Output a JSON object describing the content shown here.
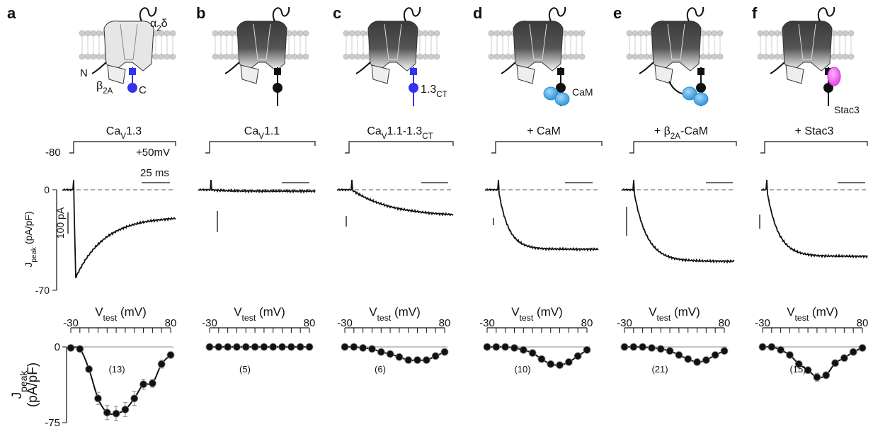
{
  "chart_data": [
    {
      "type": "line",
      "letter": "a",
      "title": [
        "Ca",
        "V",
        "1.3"
      ],
      "n_label": "(13)",
      "x_label": [
        "V",
        "test",
        " (mV)"
      ],
      "y_label": [
        "J",
        "peak",
        "(pA/pF)"
      ],
      "x": [
        -30,
        -20,
        -10,
        0,
        10,
        20,
        30,
        40,
        50,
        60,
        70,
        80
      ],
      "values": [
        -1,
        -2,
        -22,
        -51,
        -65,
        -66,
        -62,
        -51,
        -37,
        -36,
        -17,
        -8
      ],
      "errors": [
        0.5,
        1,
        3,
        6,
        7,
        7,
        7,
        7,
        5,
        4,
        4,
        3
      ],
      "xlim": [
        -30,
        80
      ],
      "xticks": [
        -30,
        80
      ],
      "ylim": [
        -75,
        0
      ],
      "yticks": [
        0,
        -75
      ]
    },
    {
      "type": "line",
      "letter": "b",
      "title": [
        "Ca",
        "V",
        "1.1"
      ],
      "n_label": "(5)",
      "x_label": [
        "V",
        "test",
        " (mV)"
      ],
      "x": [
        -30,
        -20,
        -10,
        0,
        10,
        20,
        30,
        40,
        50,
        60,
        70,
        80
      ],
      "values": [
        0,
        0,
        0,
        0,
        0,
        0,
        0,
        0,
        0,
        0,
        0,
        0
      ],
      "errors": [
        0.5,
        0.5,
        0.5,
        0.5,
        0.5,
        0.5,
        0.5,
        0.5,
        0.5,
        0.5,
        0.5,
        0.5
      ],
      "xlim": [
        -30,
        80
      ],
      "xticks": [
        -30,
        80
      ],
      "ylim": [
        -75,
        0
      ]
    },
    {
      "type": "line",
      "letter": "c",
      "title": [
        "Ca",
        "V",
        "1.1-1.3",
        "CT"
      ],
      "n_label": "(6)",
      "x_label": [
        "V",
        "test",
        " (mV)"
      ],
      "x": [
        -30,
        -20,
        -10,
        0,
        10,
        20,
        30,
        40,
        50,
        60,
        70,
        80
      ],
      "values": [
        0,
        0,
        -1,
        -2,
        -5,
        -7,
        -10,
        -13,
        -13,
        -13,
        -9,
        -5
      ],
      "errors": [
        0.5,
        0.5,
        0.5,
        1,
        1,
        1,
        1.5,
        1.5,
        1.5,
        1.5,
        1,
        1
      ],
      "xlim": [
        -30,
        80
      ],
      "xticks": [
        -30,
        80
      ],
      "ylim": [
        -75,
        0
      ]
    },
    {
      "type": "line",
      "letter": "d",
      "title": [
        "+ CaM"
      ],
      "n_label": "(10)",
      "x_label": [
        "V",
        "test",
        " (mV)"
      ],
      "x": [
        -30,
        -20,
        -10,
        0,
        10,
        20,
        30,
        40,
        50,
        60,
        70,
        80
      ],
      "values": [
        0,
        0,
        0,
        -1,
        -3,
        -6,
        -12,
        -17,
        -18,
        -15,
        -9,
        -3
      ],
      "errors": [
        0.5,
        0.5,
        0.5,
        0.5,
        1,
        1,
        2,
        2,
        2,
        2,
        1.5,
        1
      ],
      "xlim": [
        -30,
        80
      ],
      "xticks": [
        -30,
        80
      ],
      "ylim": [
        -75,
        0
      ]
    },
    {
      "type": "line",
      "letter": "e",
      "title": [
        "+ β",
        "2A",
        "-CaM"
      ],
      "n_label": "(21)",
      "x_label": [
        "V",
        "test",
        " (mV)"
      ],
      "x": [
        -30,
        -20,
        -10,
        0,
        10,
        20,
        30,
        40,
        50,
        60,
        70,
        80
      ],
      "values": [
        0,
        0,
        0,
        -1,
        -2,
        -4,
        -8,
        -12,
        -15,
        -13,
        -8,
        -4
      ],
      "errors": [
        0.5,
        0.5,
        0.5,
        0.5,
        1,
        1,
        1,
        1.5,
        1.5,
        1.5,
        1,
        1
      ],
      "xlim": [
        -30,
        80
      ],
      "xticks": [
        -30,
        80
      ],
      "ylim": [
        -75,
        0
      ]
    },
    {
      "type": "line",
      "letter": "f",
      "title": [
        "+ Stac3"
      ],
      "n_label": "(15)",
      "x_label": [
        "V",
        "test",
        " (mV)"
      ],
      "x": [
        -30,
        -20,
        -10,
        0,
        10,
        20,
        30,
        40,
        50,
        60,
        70,
        80
      ],
      "values": [
        0,
        0,
        -3,
        -8,
        -17,
        -23,
        -30,
        -28,
        -16,
        -11,
        -5,
        -1
      ],
      "errors": [
        0.5,
        0.5,
        1,
        2,
        3,
        3,
        4,
        3,
        3,
        2,
        1.5,
        1
      ],
      "xlim": [
        -30,
        80
      ],
      "xticks": [
        -30,
        80
      ],
      "ylim": [
        -75,
        0
      ]
    }
  ],
  "schematic": {
    "alpha2delta": [
      "α",
      "2",
      "δ"
    ],
    "n_term": "N",
    "beta": [
      "β",
      "2A"
    ],
    "c_term": "C",
    "ct": [
      "1.3",
      "CT"
    ],
    "cam": "CaM",
    "stac": "Stac3"
  },
  "traces": {
    "v_hold": "-80",
    "v_test": "+50mV",
    "time_bar": "25 ms",
    "current_bar": "100 pA",
    "zero": "0",
    "min": "-70",
    "y_label": [
      "J",
      "peak",
      " (pA/pF)"
    ]
  }
}
